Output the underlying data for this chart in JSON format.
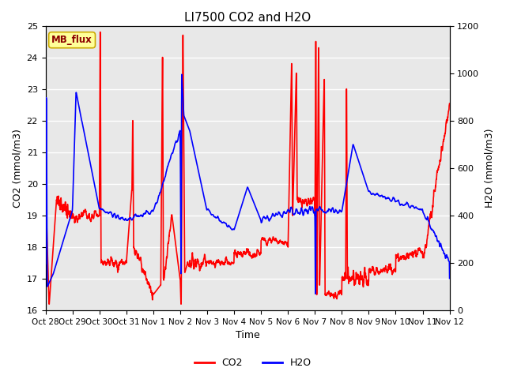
{
  "title": "LI7500 CO2 and H2O",
  "xlabel": "Time",
  "ylabel_left": "CO2 (mmol/m3)",
  "ylabel_right": "H2O (mmol/m3)",
  "ylim_left": [
    16.0,
    25.0
  ],
  "ylim_right": [
    0,
    1200
  ],
  "yticks_left": [
    16.0,
    17.0,
    18.0,
    19.0,
    20.0,
    21.0,
    22.0,
    23.0,
    24.0,
    25.0
  ],
  "yticks_right": [
    0,
    200,
    400,
    600,
    800,
    1000,
    1200
  ],
  "xtick_labels": [
    "Oct 28",
    "Oct 29",
    "Oct 30",
    "Oct 31",
    "Nov 1",
    "Nov 2",
    "Nov 3",
    "Nov 4",
    "Nov 5",
    "Nov 6",
    "Nov 7",
    "Nov 8",
    "Nov 9",
    "Nov 10",
    "Nov 11",
    "Nov 12"
  ],
  "co2_color": "#FF0000",
  "h2o_color": "#0000FF",
  "legend_label_co2": "CO2",
  "legend_label_h2o": "H2O",
  "annotation_text": "MB_flux",
  "annotation_bg": "#FFFF99",
  "annotation_border": "#CCAA00",
  "plot_bg": "#E8E8E8",
  "grid_color": "#FFFFFF",
  "title_fontsize": 11,
  "label_fontsize": 9,
  "tick_fontsize": 8,
  "legend_fontsize": 9,
  "linewidth": 1.2
}
